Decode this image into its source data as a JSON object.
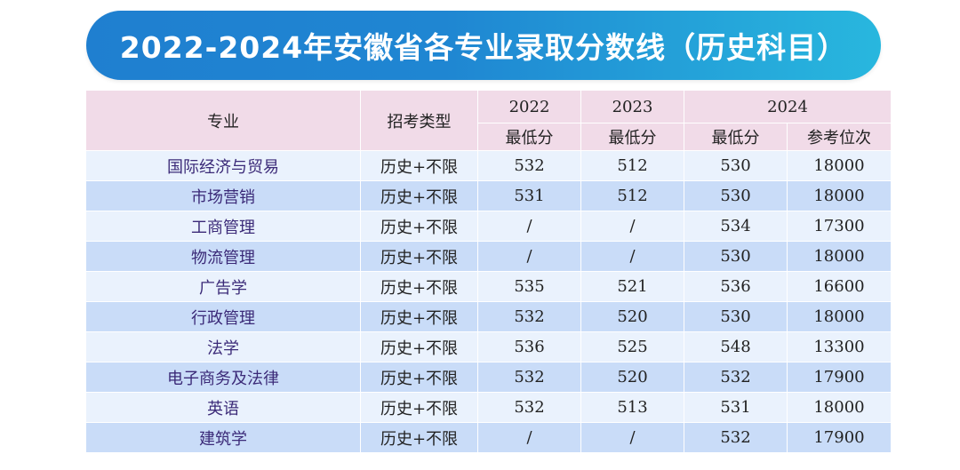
{
  "banner": {
    "title": "2022-2024年安徽省各专业录取分数线（历史科目）"
  },
  "table": {
    "headers": {
      "major": "专业",
      "type": "招考类型",
      "y2022": "2022",
      "y2023": "2023",
      "y2024": "2024",
      "min2022": "最低分",
      "min2023": "最低分",
      "min2024": "最低分",
      "rank2024": "参考位次"
    },
    "rows": [
      {
        "major": "国际经济与贸易",
        "type": "历史+不限",
        "s2022": "532",
        "s2023": "512",
        "s2024": "530",
        "rank": "18000"
      },
      {
        "major": "市场营销",
        "type": "历史+不限",
        "s2022": "531",
        "s2023": "512",
        "s2024": "530",
        "rank": "18000"
      },
      {
        "major": "工商管理",
        "type": "历史+不限",
        "s2022": "/",
        "s2023": "/",
        "s2024": "534",
        "rank": "17300"
      },
      {
        "major": "物流管理",
        "type": "历史+不限",
        "s2022": "/",
        "s2023": "/",
        "s2024": "530",
        "rank": "18000"
      },
      {
        "major": "广告学",
        "type": "历史+不限",
        "s2022": "535",
        "s2023": "521",
        "s2024": "536",
        "rank": "16600"
      },
      {
        "major": "行政管理",
        "type": "历史+不限",
        "s2022": "532",
        "s2023": "520",
        "s2024": "530",
        "rank": "18000"
      },
      {
        "major": "法学",
        "type": "历史+不限",
        "s2022": "536",
        "s2023": "525",
        "s2024": "548",
        "rank": "13300"
      },
      {
        "major": "电子商务及法律",
        "type": "历史+不限",
        "s2022": "532",
        "s2023": "520",
        "s2024": "532",
        "rank": "17900"
      },
      {
        "major": "英语",
        "type": "历史+不限",
        "s2022": "532",
        "s2023": "513",
        "s2024": "531",
        "rank": "18000"
      },
      {
        "major": "建筑学",
        "type": "历史+不限",
        "s2022": "/",
        "s2023": "/",
        "s2024": "532",
        "rank": "17900"
      }
    ]
  }
}
